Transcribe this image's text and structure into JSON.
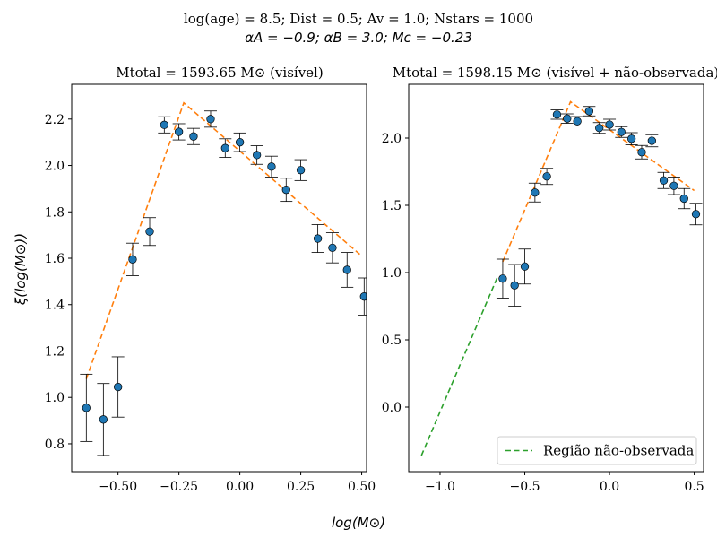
{
  "suptitle": {
    "line1": "log(age) = 8.5; Dist = 0.5; Av = 1.0; Nstars = 1000",
    "line2": "αA = −0.9; αB = 3.0; Mc = −0.23"
  },
  "shared_xlabel": "log(M⊙)",
  "colors": {
    "points": "#1f77b4",
    "fit_line": "#ff7f0e",
    "unobserved_line": "#2ca02c",
    "errorbar": "#000000"
  },
  "chart_data": [
    {
      "type": "scatter",
      "title": "Mtotal = 1593.65 M⊙ (visível)",
      "ylabel": "ξ(log(M⊙))",
      "xlim": [
        -0.69,
        0.52
      ],
      "ylim": [
        0.68,
        2.35
      ],
      "xticks": [
        -0.5,
        -0.25,
        0.0,
        0.25,
        0.5
      ],
      "xtick_labels": [
        "−0.50",
        "−0.25",
        "0.00",
        "0.25",
        "0.50"
      ],
      "yticks": [
        0.8,
        1.0,
        1.2,
        1.4,
        1.6,
        1.8,
        2.0,
        2.2
      ],
      "ytick_labels": [
        "0.8",
        "1.0",
        "1.2",
        "1.4",
        "1.6",
        "1.8",
        "2.0",
        "2.2"
      ],
      "series": [
        {
          "kind": "errorbar_points",
          "x": [
            -0.63,
            -0.56,
            -0.5,
            -0.44,
            -0.37,
            -0.31,
            -0.25,
            -0.19,
            -0.12,
            -0.06,
            0.0,
            0.07,
            0.13,
            0.19,
            0.25,
            0.32,
            0.38,
            0.44,
            0.51
          ],
          "y": [
            0.955,
            0.905,
            1.045,
            1.595,
            1.715,
            2.175,
            2.145,
            2.125,
            2.2,
            2.075,
            2.1,
            2.045,
            1.995,
            1.895,
            1.98,
            1.685,
            1.645,
            1.55,
            1.435
          ],
          "yerr": [
            0.145,
            0.155,
            0.13,
            0.07,
            0.06,
            0.035,
            0.035,
            0.035,
            0.035,
            0.04,
            0.04,
            0.04,
            0.045,
            0.05,
            0.045,
            0.06,
            0.065,
            0.075,
            0.08
          ]
        },
        {
          "kind": "line",
          "style": "dashed",
          "x": [
            -0.63,
            -0.23,
            0.5
          ],
          "y": [
            1.08,
            2.27,
            1.61
          ]
        }
      ]
    },
    {
      "type": "scatter",
      "title": "Mtotal = 1598.15 M⊙ (visível + não-observada)",
      "ylabel": "",
      "xlim": [
        -1.185,
        0.555
      ],
      "ylim": [
        -0.48,
        2.4
      ],
      "xticks": [
        -1.0,
        -0.5,
        0.0,
        0.5
      ],
      "xtick_labels": [
        "−1.0",
        "−0.5",
        "0.0",
        "0.5"
      ],
      "yticks": [
        0.0,
        0.5,
        1.0,
        1.5,
        2.0
      ],
      "ytick_labels": [
        "0.0",
        "0.5",
        "1.0",
        "1.5",
        "2.0"
      ],
      "legend": {
        "position": "lower-right",
        "entries": [
          "Região não-observada"
        ]
      },
      "series": [
        {
          "kind": "errorbar_points",
          "x": [
            -0.63,
            -0.56,
            -0.5,
            -0.44,
            -0.37,
            -0.31,
            -0.25,
            -0.19,
            -0.12,
            -0.06,
            0.0,
            0.07,
            0.13,
            0.19,
            0.25,
            0.32,
            0.38,
            0.44,
            0.51
          ],
          "y": [
            0.955,
            0.905,
            1.045,
            1.595,
            1.715,
            2.175,
            2.145,
            2.125,
            2.2,
            2.075,
            2.1,
            2.045,
            1.995,
            1.895,
            1.98,
            1.685,
            1.645,
            1.55,
            1.435
          ],
          "yerr": [
            0.145,
            0.155,
            0.13,
            0.07,
            0.06,
            0.035,
            0.035,
            0.035,
            0.035,
            0.04,
            0.04,
            0.04,
            0.045,
            0.05,
            0.045,
            0.06,
            0.065,
            0.075,
            0.08
          ]
        },
        {
          "kind": "line",
          "style": "dashed",
          "x": [
            -0.63,
            -0.23,
            0.5
          ],
          "y": [
            1.08,
            2.27,
            1.61
          ]
        },
        {
          "kind": "line",
          "style": "dashed",
          "name": "Região não-observada",
          "x": [
            -1.11,
            -0.66
          ],
          "y": [
            -0.36,
            0.97
          ]
        }
      ]
    }
  ]
}
